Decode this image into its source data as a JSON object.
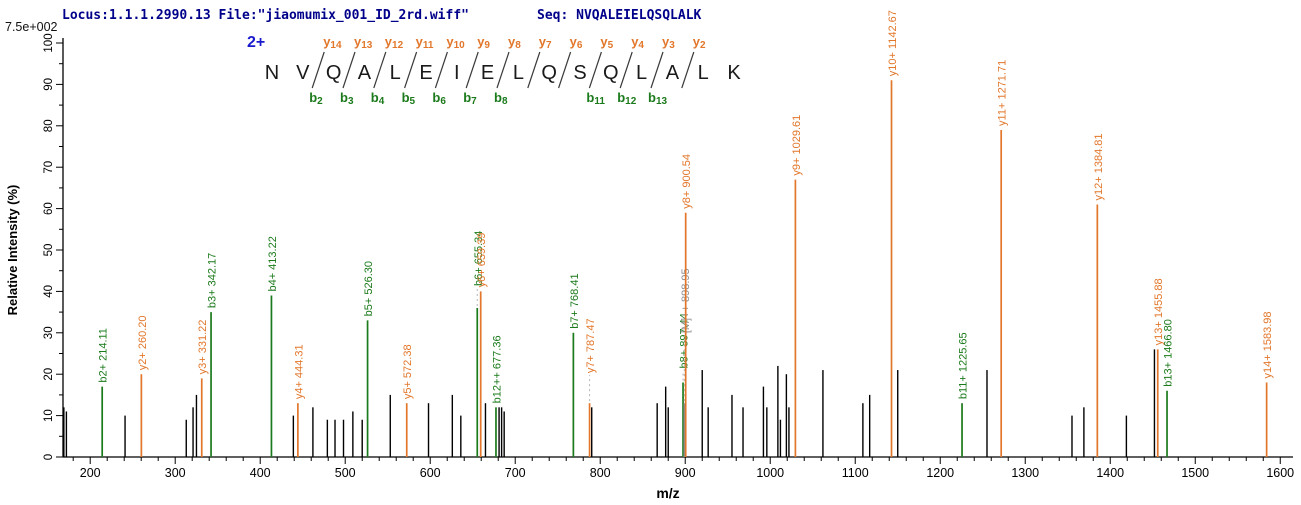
{
  "header": {
    "locus_file": "Locus:1.1.1.2990.13 File:\"jiaomumix_001_ID_2rd.wiff\"",
    "seq_label": "Seq: NVQALEIELQSQLALK",
    "scale_label": "7.5e+002"
  },
  "sequence_panel": {
    "charge_label": "2+",
    "residues": [
      "N",
      "V",
      "Q",
      "A",
      "L",
      "E",
      "I",
      "E",
      "L",
      "Q",
      "S",
      "Q",
      "L",
      "A",
      "L",
      "K"
    ],
    "y_ions": [
      {
        "gap": 2,
        "sub": "14"
      },
      {
        "gap": 3,
        "sub": "13"
      },
      {
        "gap": 4,
        "sub": "12"
      },
      {
        "gap": 5,
        "sub": "11"
      },
      {
        "gap": 6,
        "sub": "10"
      },
      {
        "gap": 7,
        "sub": "9"
      },
      {
        "gap": 8,
        "sub": "8"
      },
      {
        "gap": 9,
        "sub": "7"
      },
      {
        "gap": 10,
        "sub": "6"
      },
      {
        "gap": 11,
        "sub": "5"
      },
      {
        "gap": 12,
        "sub": "4"
      },
      {
        "gap": 13,
        "sub": "3"
      },
      {
        "gap": 14,
        "sub": "2"
      }
    ],
    "b_ions": [
      {
        "gap": 2,
        "sub": "2"
      },
      {
        "gap": 3,
        "sub": "3"
      },
      {
        "gap": 4,
        "sub": "4"
      },
      {
        "gap": 5,
        "sub": "5"
      },
      {
        "gap": 6,
        "sub": "6"
      },
      {
        "gap": 7,
        "sub": "7"
      },
      {
        "gap": 8,
        "sub": "8"
      },
      {
        "gap": 11,
        "sub": "11"
      },
      {
        "gap": 12,
        "sub": "12"
      },
      {
        "gap": 13,
        "sub": "13"
      }
    ]
  },
  "chart_data": {
    "type": "bar",
    "subtype": "mass-spectrum",
    "title": "",
    "xlabel": "m/z",
    "ylabel": "Relative  Intensity (%)",
    "xlim": [
      168,
      1615
    ],
    "ylim": [
      0,
      100
    ],
    "x_major_tick_step": 100,
    "x_minor_tick_step": 20,
    "x_tick_labels": [
      200,
      300,
      400,
      500,
      600,
      700,
      800,
      900,
      1000,
      1100,
      1200,
      1300,
      1400,
      1500,
      1600
    ],
    "y_major_tick_step": 10,
    "y_minor_tick_step": 5,
    "y_tick_labels": [
      0,
      10,
      20,
      30,
      40,
      50,
      60,
      70,
      80,
      90,
      100
    ],
    "grid": false,
    "colors": {
      "y": "#e2772b",
      "b": "#1b7a1b",
      "precursor": "#8f8f8f",
      "unassigned": "#000000",
      "axis": "#000000",
      "header": "#00008b",
      "charge": "#1a1acd"
    },
    "peaks": [
      {
        "mz": 214.11,
        "intensity": 17,
        "ion": "b",
        "label": "b2+ 214.11"
      },
      {
        "mz": 260.2,
        "intensity": 20,
        "ion": "y",
        "label": "y2+ 260.20"
      },
      {
        "mz": 331.22,
        "intensity": 19,
        "ion": "y",
        "label": "y3+ 331.22"
      },
      {
        "mz": 342.17,
        "intensity": 35,
        "ion": "b",
        "label": "b3+ 342.17"
      },
      {
        "mz": 413.22,
        "intensity": 39,
        "ion": "b",
        "label": "b4+ 413.22"
      },
      {
        "mz": 444.31,
        "intensity": 13,
        "ion": "y",
        "label": "y4+ 444.31"
      },
      {
        "mz": 526.3,
        "intensity": 33,
        "ion": "b",
        "label": "b5+ 526.30"
      },
      {
        "mz": 572.38,
        "intensity": 13,
        "ion": "y",
        "label": "y5+ 572.38"
      },
      {
        "mz": 655.34,
        "intensity": 36,
        "ion": "b",
        "label": "b6+ 655.34",
        "lift": 18
      },
      {
        "mz": 659.39,
        "intensity": 40,
        "ion": "y",
        "label": "y6+ 659.39"
      },
      {
        "mz": 677.36,
        "intensity": 12,
        "ion": "b",
        "label": "b12++ 677.36"
      },
      {
        "mz": 768.41,
        "intensity": 30,
        "ion": "b",
        "label": "b7+ 768.41"
      },
      {
        "mz": 787.47,
        "intensity": 13,
        "ion": "y",
        "label": "y7+ 787.47",
        "lift": 26
      },
      {
        "mz": 897.44,
        "intensity": 18,
        "ion": "b",
        "label": "b8+ 897.44",
        "lift": 10
      },
      {
        "mz": 898.95,
        "intensity": 13,
        "ion": "precursor",
        "label": "[M]++ 898.95",
        "lift": 66
      },
      {
        "mz": 900.54,
        "intensity": 59,
        "ion": "y",
        "label": "y8+ 900.54"
      },
      {
        "mz": 1029.61,
        "intensity": 67,
        "ion": "y",
        "label": "y9+ 1029.61"
      },
      {
        "mz": 1142.67,
        "intensity": 91,
        "ion": "y",
        "label": "y10+ 1142.67"
      },
      {
        "mz": 1225.65,
        "intensity": 13,
        "ion": "b",
        "label": "b11+ 1225.65"
      },
      {
        "mz": 1271.71,
        "intensity": 79,
        "ion": "y",
        "label": "y11+ 1271.71"
      },
      {
        "mz": 1384.81,
        "intensity": 61,
        "ion": "y",
        "label": "y12+ 1384.81"
      },
      {
        "mz": 1455.88,
        "intensity": 26,
        "ion": "y",
        "label": "y13+ 1455.88"
      },
      {
        "mz": 1466.8,
        "intensity": 16,
        "ion": "b",
        "label": "b13+ 1466.80"
      },
      {
        "mz": 1583.98,
        "intensity": 18,
        "ion": "y",
        "label": "y14+ 1583.98"
      },
      {
        "mz": 169,
        "intensity": 12,
        "ion": "unassigned"
      },
      {
        "mz": 172,
        "intensity": 11,
        "ion": "unassigned"
      },
      {
        "mz": 241,
        "intensity": 10,
        "ion": "unassigned"
      },
      {
        "mz": 313,
        "intensity": 9,
        "ion": "unassigned"
      },
      {
        "mz": 321,
        "intensity": 12,
        "ion": "unassigned"
      },
      {
        "mz": 325,
        "intensity": 15,
        "ion": "unassigned"
      },
      {
        "mz": 439,
        "intensity": 10,
        "ion": "unassigned"
      },
      {
        "mz": 462,
        "intensity": 12,
        "ion": "unassigned"
      },
      {
        "mz": 479,
        "intensity": 9,
        "ion": "unassigned"
      },
      {
        "mz": 488,
        "intensity": 9,
        "ion": "unassigned"
      },
      {
        "mz": 498,
        "intensity": 9,
        "ion": "unassigned"
      },
      {
        "mz": 509,
        "intensity": 11,
        "ion": "unassigned"
      },
      {
        "mz": 520,
        "intensity": 9,
        "ion": "unassigned"
      },
      {
        "mz": 553,
        "intensity": 15,
        "ion": "unassigned"
      },
      {
        "mz": 598,
        "intensity": 13,
        "ion": "unassigned"
      },
      {
        "mz": 626,
        "intensity": 15,
        "ion": "unassigned"
      },
      {
        "mz": 636,
        "intensity": 10,
        "ion": "unassigned"
      },
      {
        "mz": 665,
        "intensity": 13,
        "ion": "unassigned"
      },
      {
        "mz": 681,
        "intensity": 12,
        "ion": "unassigned"
      },
      {
        "mz": 684,
        "intensity": 12,
        "ion": "unassigned"
      },
      {
        "mz": 687,
        "intensity": 11,
        "ion": "unassigned"
      },
      {
        "mz": 790,
        "intensity": 12,
        "ion": "unassigned"
      },
      {
        "mz": 867,
        "intensity": 13,
        "ion": "unassigned"
      },
      {
        "mz": 877,
        "intensity": 17,
        "ion": "unassigned"
      },
      {
        "mz": 880,
        "intensity": 12,
        "ion": "unassigned"
      },
      {
        "mz": 920,
        "intensity": 21,
        "ion": "unassigned"
      },
      {
        "mz": 927,
        "intensity": 12,
        "ion": "unassigned"
      },
      {
        "mz": 955,
        "intensity": 15,
        "ion": "unassigned"
      },
      {
        "mz": 968,
        "intensity": 12,
        "ion": "unassigned"
      },
      {
        "mz": 992,
        "intensity": 17,
        "ion": "unassigned"
      },
      {
        "mz": 996,
        "intensity": 12,
        "ion": "unassigned"
      },
      {
        "mz": 1009,
        "intensity": 22,
        "ion": "unassigned"
      },
      {
        "mz": 1012,
        "intensity": 9,
        "ion": "unassigned"
      },
      {
        "mz": 1019,
        "intensity": 20,
        "ion": "unassigned"
      },
      {
        "mz": 1022,
        "intensity": 12,
        "ion": "unassigned"
      },
      {
        "mz": 1062,
        "intensity": 21,
        "ion": "unassigned"
      },
      {
        "mz": 1109,
        "intensity": 13,
        "ion": "unassigned"
      },
      {
        "mz": 1117,
        "intensity": 15,
        "ion": "unassigned"
      },
      {
        "mz": 1150,
        "intensity": 21,
        "ion": "unassigned"
      },
      {
        "mz": 1255,
        "intensity": 21,
        "ion": "unassigned"
      },
      {
        "mz": 1355,
        "intensity": 10,
        "ion": "unassigned"
      },
      {
        "mz": 1369,
        "intensity": 12,
        "ion": "unassigned"
      },
      {
        "mz": 1419,
        "intensity": 10,
        "ion": "unassigned"
      },
      {
        "mz": 1452,
        "intensity": 26,
        "ion": "unassigned"
      }
    ]
  }
}
